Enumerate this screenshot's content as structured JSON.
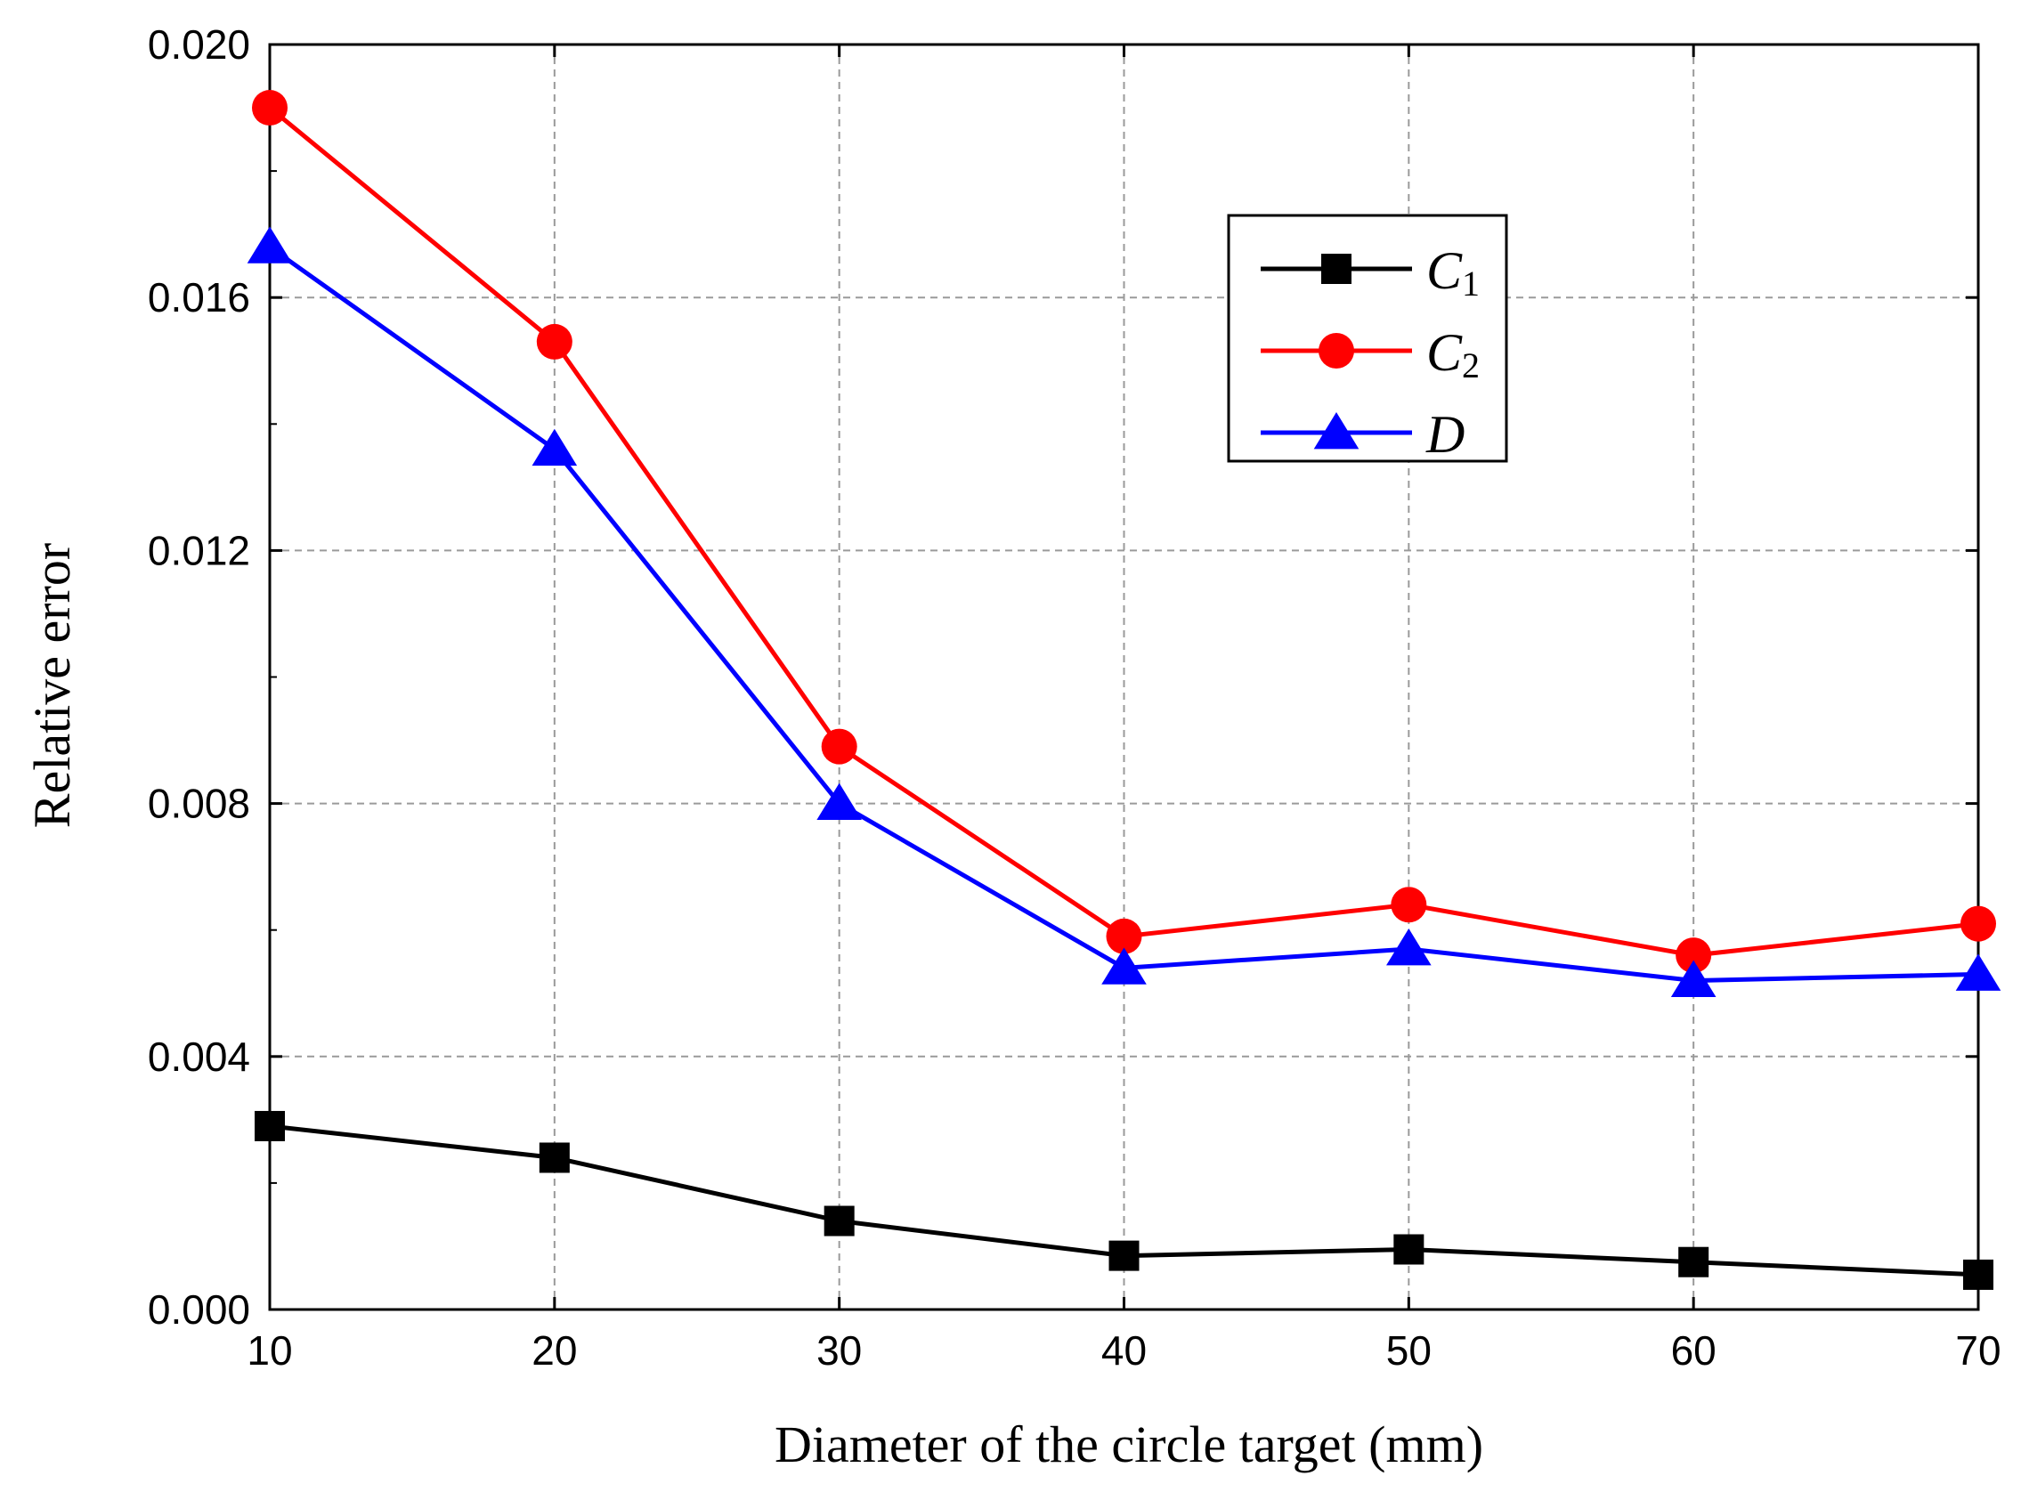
{
  "chart_data": {
    "type": "line",
    "title": "",
    "xlabel": "Diameter of the circle target (mm)",
    "ylabel": "Relative error",
    "x": [
      10,
      20,
      30,
      40,
      50,
      60,
      70
    ],
    "xlim": [
      10,
      70
    ],
    "ylim": [
      0,
      0.02
    ],
    "xticks": [
      "10",
      "20",
      "30",
      "40",
      "50",
      "60",
      "70"
    ],
    "yticks": [
      "0.000",
      "0.004",
      "0.008",
      "0.012",
      "0.016",
      "0.020"
    ],
    "grid": true,
    "legend_position": "top-right",
    "series": [
      {
        "name": "C",
        "sub": "1",
        "color": "#000000",
        "marker": "square",
        "values": [
          0.0029,
          0.0024,
          0.0014,
          0.00085,
          0.00095,
          0.00075,
          0.00055
        ]
      },
      {
        "name": "C",
        "sub": "2",
        "color": "#ff0000",
        "marker": "circle",
        "values": [
          0.019,
          0.0153,
          0.0089,
          0.0059,
          0.0064,
          0.0056,
          0.0061
        ]
      },
      {
        "name": "D",
        "sub": "",
        "color": "#0000ff",
        "marker": "triangle",
        "values": [
          0.0168,
          0.0136,
          0.008,
          0.0054,
          0.0057,
          0.0052,
          0.0053
        ]
      }
    ]
  }
}
